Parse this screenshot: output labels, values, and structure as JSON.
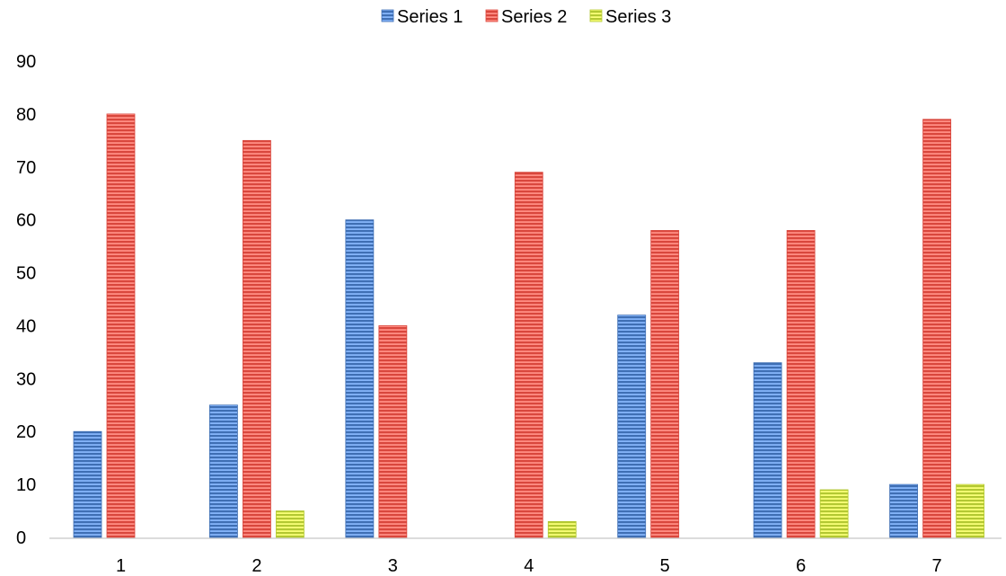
{
  "chart_data": {
    "type": "bar",
    "title": "",
    "xlabel": "",
    "ylabel": "",
    "categories": [
      "1",
      "2",
      "3",
      "4",
      "5",
      "6",
      "7"
    ],
    "ylim": [
      0,
      90
    ],
    "yticks": [
      0,
      10,
      20,
      30,
      40,
      50,
      60,
      70,
      80,
      90
    ],
    "grid": false,
    "legend_position": "top-center",
    "series": [
      {
        "name": "Series 1",
        "color": "#3f6fb4",
        "values": [
          20,
          25,
          60,
          null,
          42,
          33,
          10
        ]
      },
      {
        "name": "Series 2",
        "color": "#d9473d",
        "values": [
          80,
          75,
          40,
          69,
          58,
          58,
          79
        ]
      },
      {
        "name": "Series 3",
        "color": "#b3c832",
        "values": [
          null,
          5,
          null,
          3,
          null,
          9,
          10
        ]
      }
    ]
  }
}
